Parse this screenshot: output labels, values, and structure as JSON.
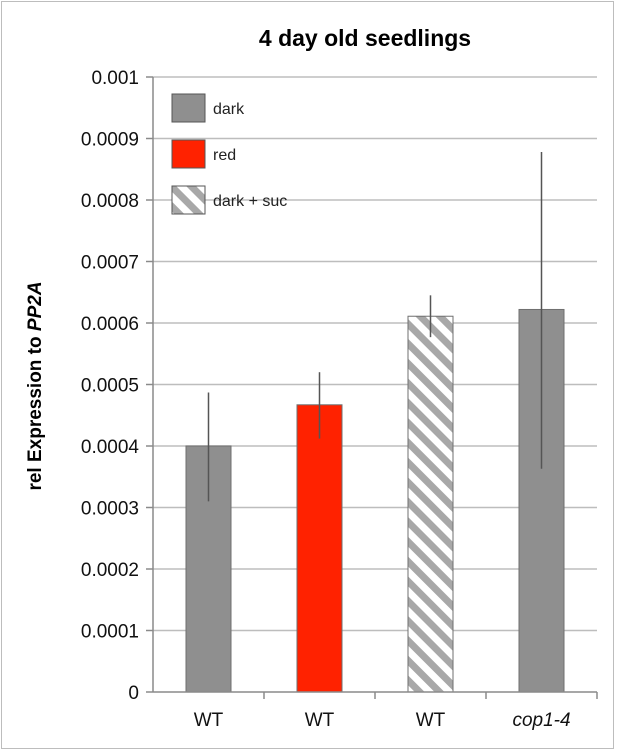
{
  "chart_data": {
    "type": "bar",
    "title": "4 day old seedlings",
    "ylabel": {
      "prefix": "rel Expression to ",
      "gene": "PP2A"
    },
    "xlabel": "",
    "ylim": [
      0,
      0.001
    ],
    "yticks": [
      0,
      0.0001,
      0.0002,
      0.0003,
      0.0004,
      0.0005,
      0.0006,
      0.0007,
      0.0008,
      0.0009,
      0.001
    ],
    "ytick_labels": [
      "0",
      "0.0001",
      "0.0002",
      "0.0003",
      "0.0004",
      "0.0005",
      "0.0006",
      "0.0007",
      "0.0008",
      "0.0009",
      "0.001"
    ],
    "grid": true,
    "legend_position": "top-left",
    "categories": [
      {
        "label": "WT",
        "italic": false
      },
      {
        "label": "WT",
        "italic": false
      },
      {
        "label": "WT",
        "italic": false
      },
      {
        "label": "cop1-4",
        "italic": true
      }
    ],
    "bars": [
      {
        "value": 0.0004,
        "error_low": 0.00031,
        "error_high": 0.000487,
        "condition": "dark"
      },
      {
        "value": 0.000467,
        "error_low": 0.000412,
        "error_high": 0.00052,
        "condition": "red"
      },
      {
        "value": 0.000611,
        "error_low": 0.000577,
        "error_high": 0.000645,
        "condition": "dark + suc"
      },
      {
        "value": 0.000622,
        "error_low": 0.000363,
        "error_high": 0.000878,
        "condition": "dark"
      }
    ],
    "legend": [
      {
        "label": "dark",
        "fill": "solid",
        "color": "#8f8f8f"
      },
      {
        "label": "red",
        "fill": "solid",
        "color": "#ff2200"
      },
      {
        "label": "dark + suc",
        "fill": "hatched",
        "color": "#a8a8a8"
      }
    ]
  }
}
